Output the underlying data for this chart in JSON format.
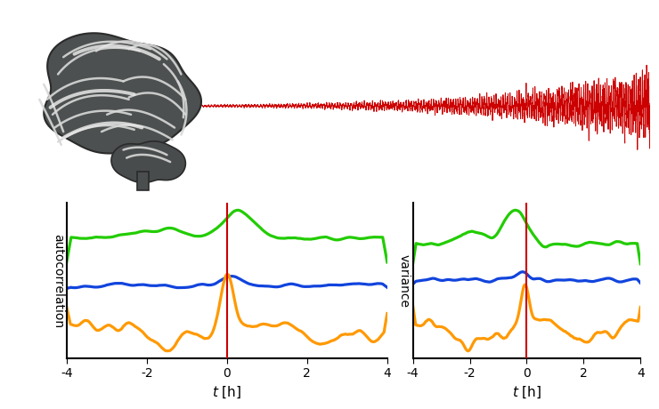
{
  "bg_color": "#ffffff",
  "eeg_color": "#cc0000",
  "vline_color": "#cc0000",
  "green_color": "#22cc00",
  "blue_color": "#1144dd",
  "orange_color": "#ff9900",
  "xlim": [
    -4,
    4
  ],
  "ylabel_left": "autocorrelation",
  "ylabel_right": "variance",
  "xticks": [
    -4,
    -2,
    0,
    2,
    4
  ],
  "brain_dark": "#4a4a4a",
  "brain_mid": "#606060",
  "brain_light": "#787878",
  "brain_white": "#e8e8e8"
}
